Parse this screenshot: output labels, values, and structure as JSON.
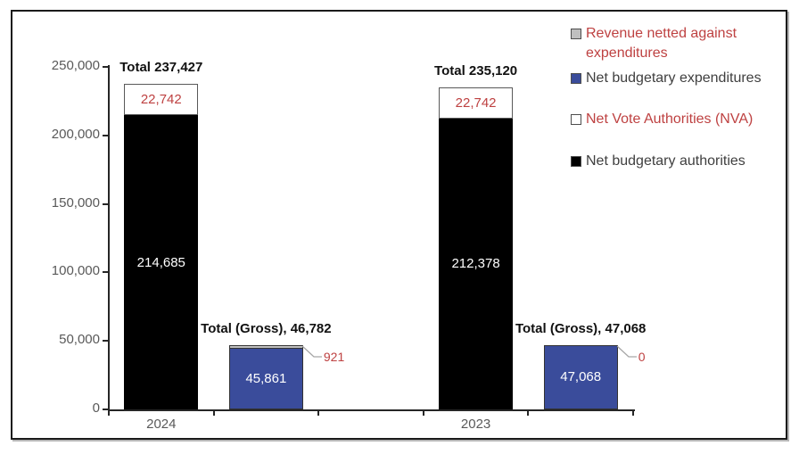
{
  "chart_data": {
    "type": "bar",
    "stacked": true,
    "grid": false,
    "categories": [
      "2024",
      "2023"
    ],
    "y_axis": {
      "min": 0,
      "max": 250000,
      "tick_step": 50000,
      "tick_values": [
        250000,
        200000,
        150000,
        100000,
        50000,
        0
      ],
      "tick_labels": [
        "250,000",
        "200,000",
        "150,000",
        "100,000",
        "50,000",
        "0"
      ]
    },
    "series": [
      {
        "name": "Net budgetary authorities",
        "values": [
          214685,
          212378
        ]
      },
      {
        "name": "Net Vote Authorities (NVA)",
        "values": [
          22742,
          22742
        ]
      },
      {
        "name": "Net budgetary expenditures",
        "values": [
          45861,
          47068
        ]
      },
      {
        "name": "Revenue netted against expenditures",
        "values": [
          921,
          0
        ]
      }
    ],
    "groups": [
      {
        "category": "2024",
        "total": 237427,
        "total_label": "Total 237,427",
        "nva": 22742,
        "nva_label": "22,742",
        "net_authorities": 214685,
        "net_authorities_label": "214,685",
        "gross": 46782,
        "gross_label": "Total (Gross), 46,782",
        "net_expenditures": 45861,
        "net_expenditures_label": "45,861",
        "revenue_netted": 921,
        "revenue_netted_label": "921"
      },
      {
        "category": "2023",
        "total": 235120,
        "total_label": "Total 235,120",
        "nva": 22742,
        "nva_label": "22,742",
        "net_authorities": 212378,
        "net_authorities_label": "212,378",
        "gross": 47068,
        "gross_label": "Total (Gross), 47,068",
        "net_expenditures": 47068,
        "net_expenditures_label": "47,068",
        "revenue_netted": 0,
        "revenue_netted_label": "0"
      }
    ],
    "legend": {
      "position": "right-top",
      "items": [
        {
          "label": "Revenue netted against expenditures",
          "swatch_color": "#BFBFBF",
          "text_color": "#BE4141"
        },
        {
          "label": "Net budgetary expenditures",
          "swatch_color": "#3A4C9B",
          "text_color": "#3F3F3F"
        },
        {
          "label": "Net Vote Authorities (NVA)",
          "swatch_color": "#FFFFFF",
          "text_color": "#BE4141"
        },
        {
          "label": "Net budgetary authorities",
          "swatch_color": "#000000",
          "text_color": "#3F3F3F"
        }
      ]
    },
    "colors": {
      "net_authorities_bar": "#000000",
      "net_expenditures_bar": "#3A4C9B",
      "nva_segment": "#FFFFFF",
      "revenue_netted_segment": "#BFBFBF",
      "accent_red": "#BE4141",
      "axis_text": "#595959",
      "axis_line": "#262626",
      "leader_line": "#A6A6A6"
    }
  }
}
